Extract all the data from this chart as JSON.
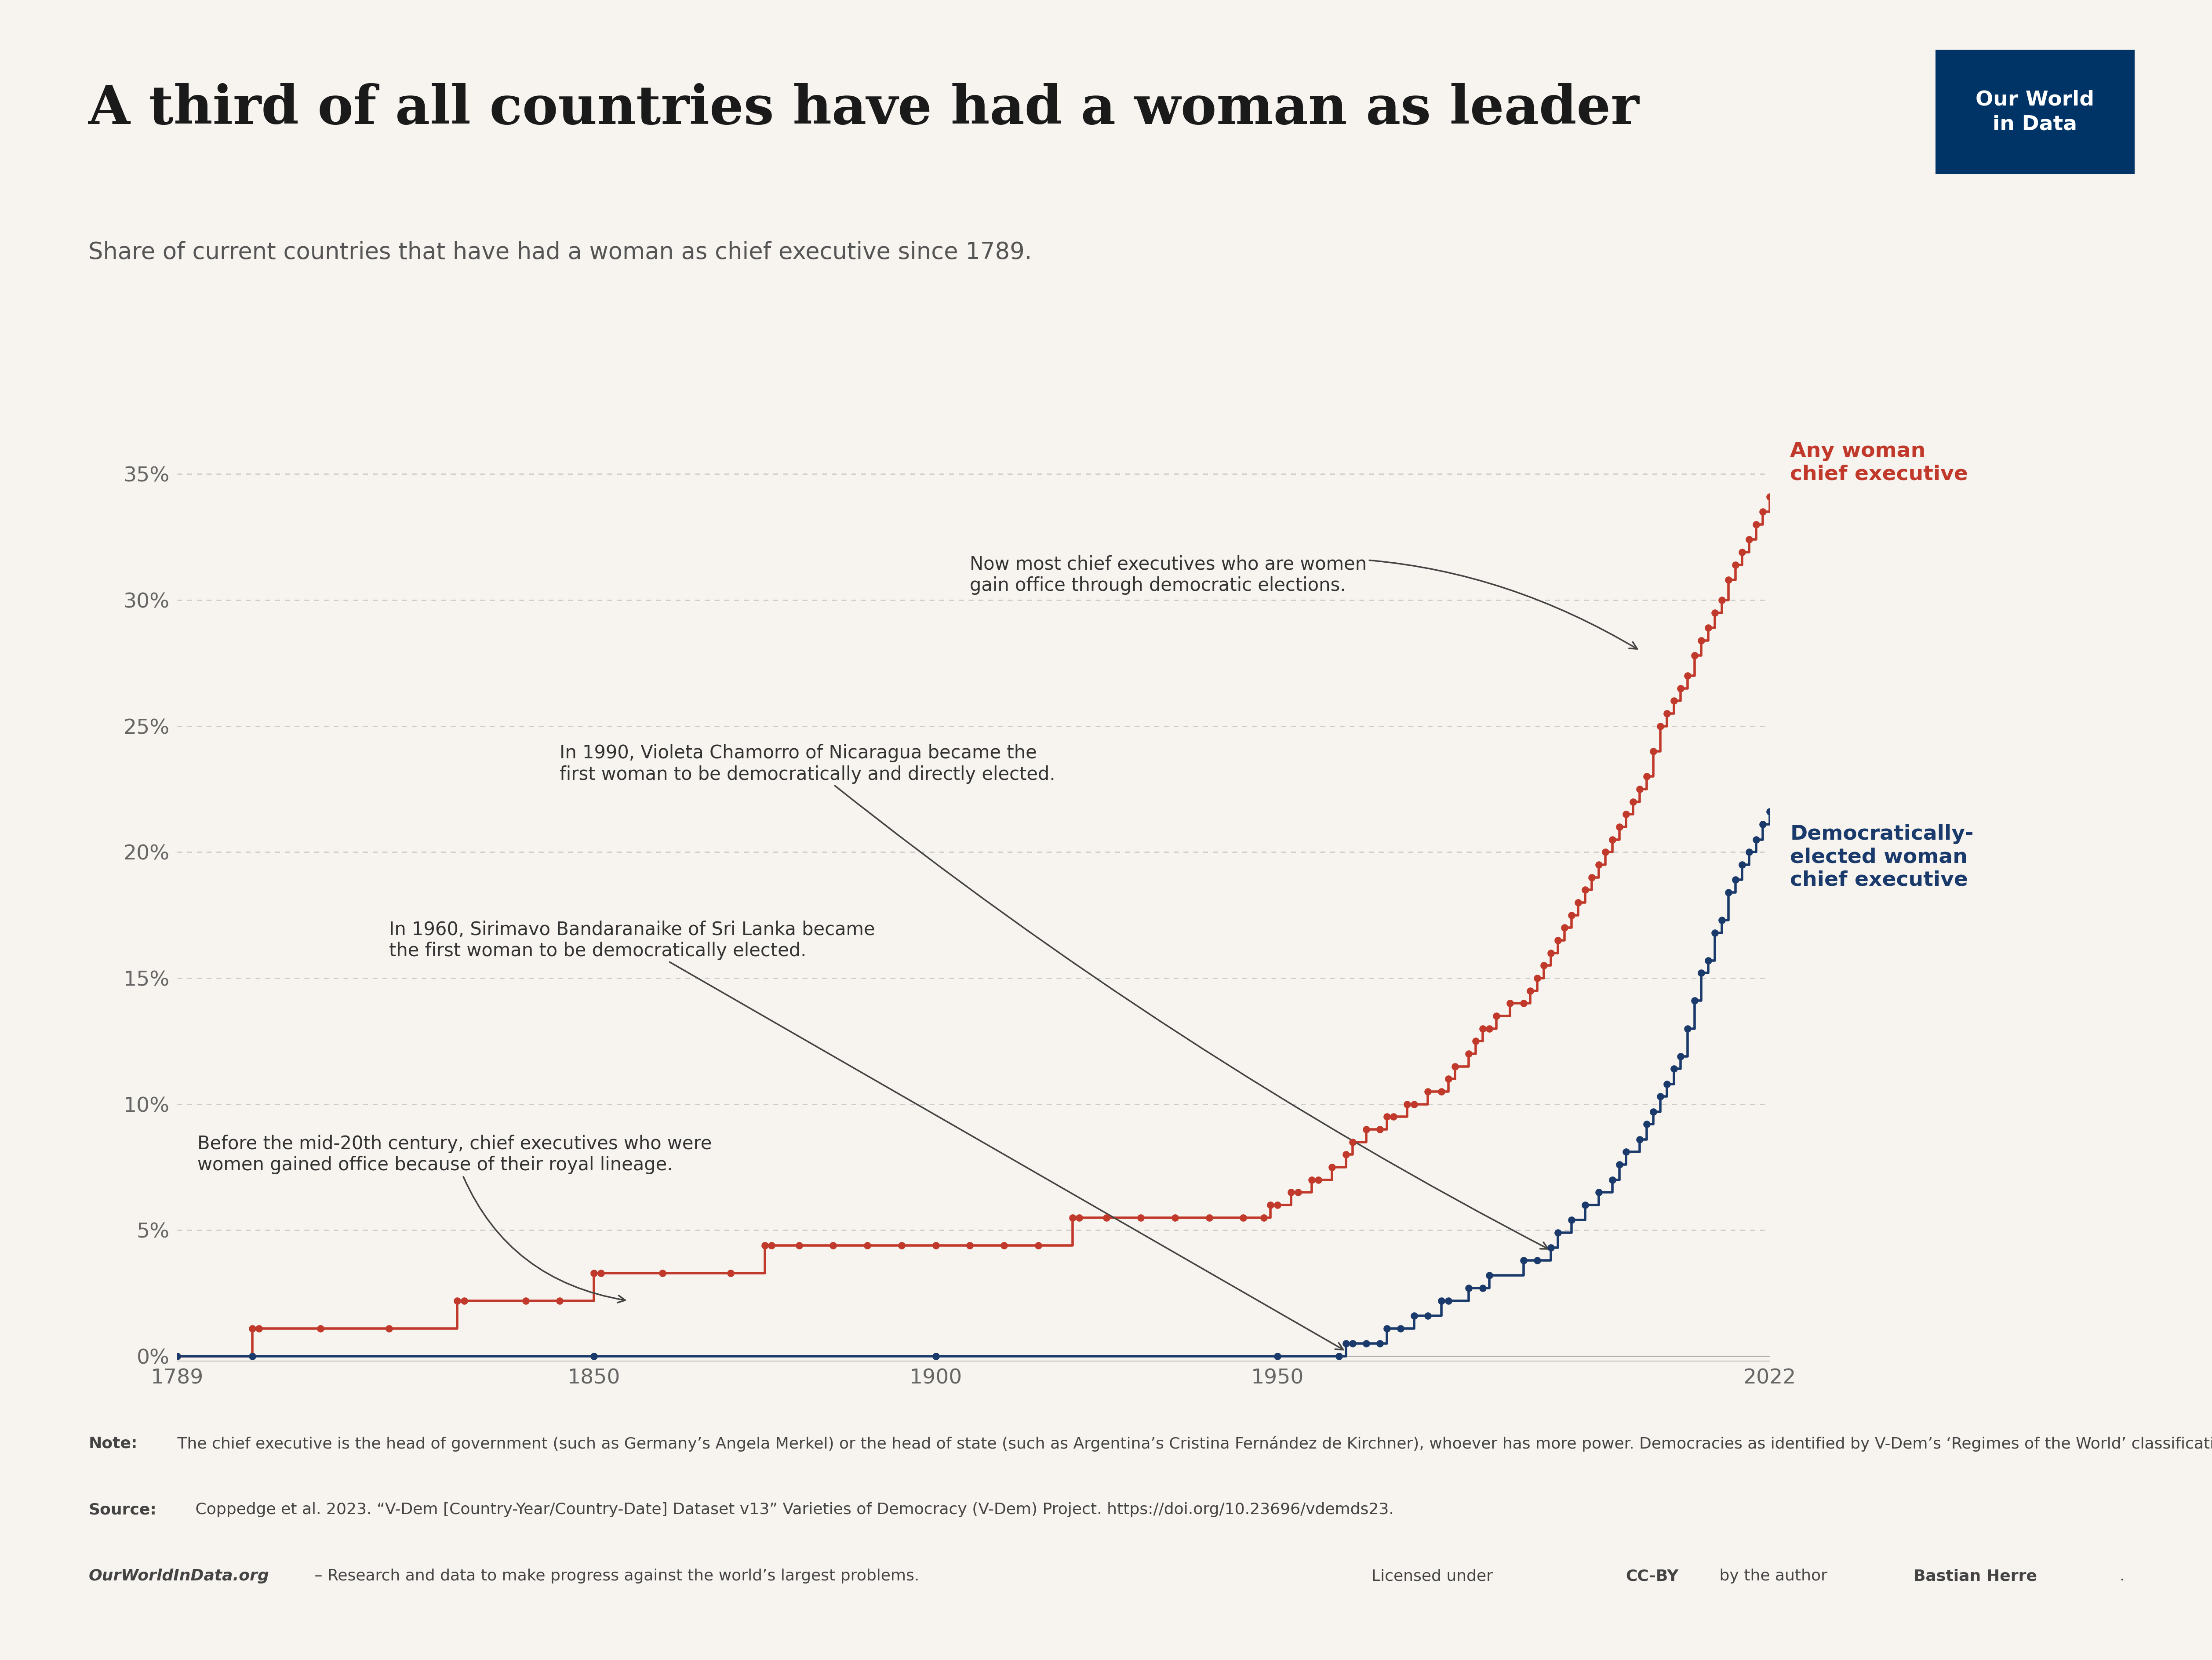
{
  "title": "A third of all countries have had a woman as leader",
  "subtitle": "Share of current countries that have had a woman as chief executive since 1789.",
  "bg_color": "#f7f4ef",
  "title_color": "#1a1a1a",
  "subtitle_color": "#555555",
  "any_color": "#c0392b",
  "demo_color": "#1a3a6b",
  "grid_color": "#cccccc",
  "tick_color": "#666666",
  "any_label": "Any woman\nchief executive",
  "demo_label": "Democratically-\nelected woman\nchief executive",
  "xlim": [
    1789,
    2022
  ],
  "ylim": [
    -0.002,
    0.38
  ],
  "yticks": [
    0.0,
    0.05,
    0.1,
    0.15,
    0.2,
    0.25,
    0.3,
    0.35
  ],
  "ytick_labels": [
    "0%",
    "5%",
    "10%",
    "15%",
    "20%",
    "25%",
    "30%",
    "35%"
  ],
  "xticks": [
    1789,
    1850,
    1900,
    1950,
    2022
  ],
  "note_bold": "Note:",
  "note_text": " The chief executive is the head of government (such as Germany’s Angela Merkel) or the head of state (such as Argentina’s Cristina Fernández de Kirchner), whoever has more power. Democracies as identified by V-Dem’s ‘Regimes of the World’ classification.",
  "source_bold": "Source:",
  "source_text": " Coppedge et al. 2023. “V-Dem [Country-Year/Country-Date] Dataset v13” Varieties of Democracy (V-Dem) Project. https://doi.org/10.23696/vdemds23.",
  "owid_text": "OurWorldInData.org",
  "owid_suffix": " – Research and data to make progress against the world’s largest problems.",
  "owid_box_bg": "#003366",
  "owid_box_text": "Our World\nin Data",
  "any_data": [
    [
      1789,
      0.0
    ],
    [
      1800,
      0.011
    ],
    [
      1801,
      0.011
    ],
    [
      1810,
      0.011
    ],
    [
      1820,
      0.011
    ],
    [
      1830,
      0.022
    ],
    [
      1831,
      0.022
    ],
    [
      1840,
      0.022
    ],
    [
      1845,
      0.022
    ],
    [
      1850,
      0.033
    ],
    [
      1851,
      0.033
    ],
    [
      1860,
      0.033
    ],
    [
      1870,
      0.033
    ],
    [
      1875,
      0.044
    ],
    [
      1876,
      0.044
    ],
    [
      1880,
      0.044
    ],
    [
      1885,
      0.044
    ],
    [
      1890,
      0.044
    ],
    [
      1895,
      0.044
    ],
    [
      1900,
      0.044
    ],
    [
      1905,
      0.044
    ],
    [
      1910,
      0.044
    ],
    [
      1915,
      0.044
    ],
    [
      1920,
      0.055
    ],
    [
      1921,
      0.055
    ],
    [
      1925,
      0.055
    ],
    [
      1930,
      0.055
    ],
    [
      1935,
      0.055
    ],
    [
      1940,
      0.055
    ],
    [
      1945,
      0.055
    ],
    [
      1948,
      0.055
    ],
    [
      1949,
      0.06
    ],
    [
      1950,
      0.06
    ],
    [
      1952,
      0.065
    ],
    [
      1953,
      0.065
    ],
    [
      1955,
      0.07
    ],
    [
      1956,
      0.07
    ],
    [
      1958,
      0.075
    ],
    [
      1960,
      0.08
    ],
    [
      1961,
      0.085
    ],
    [
      1963,
      0.09
    ],
    [
      1965,
      0.09
    ],
    [
      1966,
      0.095
    ],
    [
      1967,
      0.095
    ],
    [
      1969,
      0.1
    ],
    [
      1970,
      0.1
    ],
    [
      1972,
      0.105
    ],
    [
      1974,
      0.105
    ],
    [
      1975,
      0.11
    ],
    [
      1976,
      0.115
    ],
    [
      1978,
      0.12
    ],
    [
      1979,
      0.125
    ],
    [
      1980,
      0.13
    ],
    [
      1981,
      0.13
    ],
    [
      1982,
      0.135
    ],
    [
      1984,
      0.14
    ],
    [
      1986,
      0.14
    ],
    [
      1987,
      0.145
    ],
    [
      1988,
      0.15
    ],
    [
      1989,
      0.155
    ],
    [
      1990,
      0.16
    ],
    [
      1991,
      0.165
    ],
    [
      1992,
      0.17
    ],
    [
      1993,
      0.175
    ],
    [
      1994,
      0.18
    ],
    [
      1995,
      0.185
    ],
    [
      1996,
      0.19
    ],
    [
      1997,
      0.195
    ],
    [
      1998,
      0.2
    ],
    [
      1999,
      0.205
    ],
    [
      2000,
      0.21
    ],
    [
      2001,
      0.215
    ],
    [
      2002,
      0.22
    ],
    [
      2003,
      0.225
    ],
    [
      2004,
      0.23
    ],
    [
      2005,
      0.24
    ],
    [
      2006,
      0.25
    ],
    [
      2007,
      0.255
    ],
    [
      2008,
      0.26
    ],
    [
      2009,
      0.265
    ],
    [
      2010,
      0.27
    ],
    [
      2011,
      0.278
    ],
    [
      2012,
      0.284
    ],
    [
      2013,
      0.289
    ],
    [
      2014,
      0.295
    ],
    [
      2015,
      0.3
    ],
    [
      2016,
      0.308
    ],
    [
      2017,
      0.314
    ],
    [
      2018,
      0.319
    ],
    [
      2019,
      0.324
    ],
    [
      2020,
      0.33
    ],
    [
      2021,
      0.335
    ],
    [
      2022,
      0.341
    ]
  ],
  "demo_data": [
    [
      1789,
      0.0
    ],
    [
      1800,
      0.0
    ],
    [
      1850,
      0.0
    ],
    [
      1900,
      0.0
    ],
    [
      1950,
      0.0
    ],
    [
      1959,
      0.0
    ],
    [
      1960,
      0.005
    ],
    [
      1961,
      0.005
    ],
    [
      1963,
      0.005
    ],
    [
      1965,
      0.005
    ],
    [
      1966,
      0.011
    ],
    [
      1968,
      0.011
    ],
    [
      1970,
      0.016
    ],
    [
      1972,
      0.016
    ],
    [
      1974,
      0.022
    ],
    [
      1975,
      0.022
    ],
    [
      1978,
      0.027
    ],
    [
      1980,
      0.027
    ],
    [
      1981,
      0.032
    ],
    [
      1986,
      0.038
    ],
    [
      1988,
      0.038
    ],
    [
      1990,
      0.043
    ],
    [
      1991,
      0.049
    ],
    [
      1993,
      0.054
    ],
    [
      1995,
      0.06
    ],
    [
      1997,
      0.065
    ],
    [
      1999,
      0.07
    ],
    [
      2000,
      0.076
    ],
    [
      2001,
      0.081
    ],
    [
      2003,
      0.086
    ],
    [
      2004,
      0.092
    ],
    [
      2005,
      0.097
    ],
    [
      2006,
      0.103
    ],
    [
      2007,
      0.108
    ],
    [
      2008,
      0.114
    ],
    [
      2009,
      0.119
    ],
    [
      2010,
      0.13
    ],
    [
      2011,
      0.141
    ],
    [
      2012,
      0.152
    ],
    [
      2013,
      0.157
    ],
    [
      2014,
      0.168
    ],
    [
      2015,
      0.173
    ],
    [
      2016,
      0.184
    ],
    [
      2017,
      0.189
    ],
    [
      2018,
      0.195
    ],
    [
      2019,
      0.2
    ],
    [
      2020,
      0.205
    ],
    [
      2021,
      0.211
    ],
    [
      2022,
      0.216
    ]
  ]
}
